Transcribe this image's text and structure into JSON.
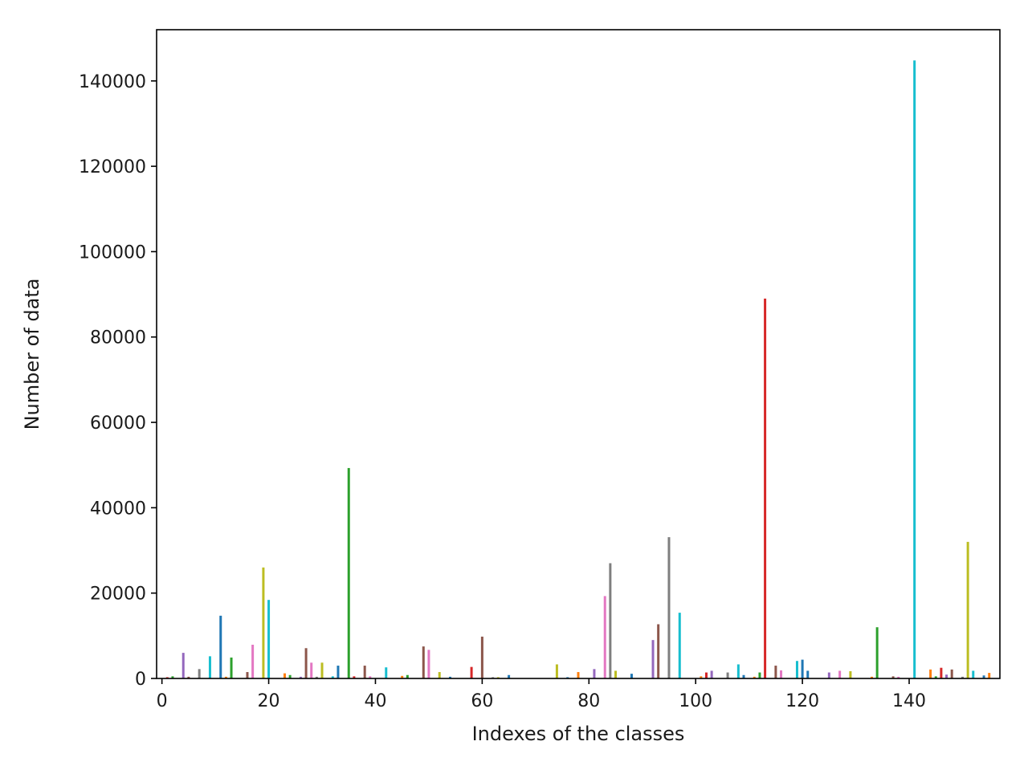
{
  "chart_data": {
    "type": "bar",
    "title": "",
    "xlabel": "Indexes of the classes",
    "ylabel": "Number of data",
    "xlim": [
      -1,
      157
    ],
    "ylim": [
      0,
      152000
    ],
    "xticks": [
      0,
      20,
      40,
      60,
      80,
      100,
      120,
      140
    ],
    "yticks": [
      0,
      20000,
      40000,
      60000,
      80000,
      100000,
      120000,
      140000
    ],
    "grid": false,
    "legend": "none",
    "palette": [
      "#1f77b4",
      "#ff7f0e",
      "#2ca02c",
      "#d62728",
      "#9467bd",
      "#8c564b",
      "#e377c2",
      "#7f7f7f",
      "#bcbd22",
      "#17becf"
    ],
    "bars": [
      {
        "x": 1,
        "y": 300,
        "color": "#d62728"
      },
      {
        "x": 2,
        "y": 500,
        "color": "#2ca02c"
      },
      {
        "x": 4,
        "y": 6000,
        "color": "#9467bd"
      },
      {
        "x": 5,
        "y": 400,
        "color": "#8c564b"
      },
      {
        "x": 7,
        "y": 2200,
        "color": "#7f7f7f"
      },
      {
        "x": 9,
        "y": 5200,
        "color": "#17becf"
      },
      {
        "x": 11,
        "y": 14700,
        "color": "#1f77b4"
      },
      {
        "x": 12,
        "y": 400,
        "color": "#ff7f0e"
      },
      {
        "x": 13,
        "y": 4900,
        "color": "#2ca02c"
      },
      {
        "x": 16,
        "y": 1500,
        "color": "#8c564b"
      },
      {
        "x": 17,
        "y": 7900,
        "color": "#e377c2"
      },
      {
        "x": 19,
        "y": 26000,
        "color": "#bcbd22"
      },
      {
        "x": 20,
        "y": 18400,
        "color": "#17becf"
      },
      {
        "x": 23,
        "y": 1200,
        "color": "#ff7f0e"
      },
      {
        "x": 24,
        "y": 800,
        "color": "#2ca02c"
      },
      {
        "x": 26,
        "y": 400,
        "color": "#9467bd"
      },
      {
        "x": 27,
        "y": 7100,
        "color": "#8c564b"
      },
      {
        "x": 28,
        "y": 3700,
        "color": "#e377c2"
      },
      {
        "x": 29,
        "y": 400,
        "color": "#7f7f7f"
      },
      {
        "x": 30,
        "y": 3700,
        "color": "#bcbd22"
      },
      {
        "x": 32,
        "y": 500,
        "color": "#17becf"
      },
      {
        "x": 33,
        "y": 3000,
        "color": "#1f77b4"
      },
      {
        "x": 35,
        "y": 49300,
        "color": "#2ca02c"
      },
      {
        "x": 36,
        "y": 500,
        "color": "#d62728"
      },
      {
        "x": 38,
        "y": 3000,
        "color": "#8c564b"
      },
      {
        "x": 39,
        "y": 500,
        "color": "#e377c2"
      },
      {
        "x": 42,
        "y": 2600,
        "color": "#17becf"
      },
      {
        "x": 45,
        "y": 600,
        "color": "#ff7f0e"
      },
      {
        "x": 46,
        "y": 800,
        "color": "#2ca02c"
      },
      {
        "x": 49,
        "y": 7500,
        "color": "#8c564b"
      },
      {
        "x": 50,
        "y": 6700,
        "color": "#e377c2"
      },
      {
        "x": 52,
        "y": 1500,
        "color": "#bcbd22"
      },
      {
        "x": 54,
        "y": 400,
        "color": "#1f77b4"
      },
      {
        "x": 58,
        "y": 2700,
        "color": "#d62728"
      },
      {
        "x": 60,
        "y": 9800,
        "color": "#8c564b"
      },
      {
        "x": 62,
        "y": 300,
        "color": "#7f7f7f"
      },
      {
        "x": 63,
        "y": 300,
        "color": "#bcbd22"
      },
      {
        "x": 65,
        "y": 800,
        "color": "#1f77b4"
      },
      {
        "x": 74,
        "y": 3300,
        "color": "#bcbd22"
      },
      {
        "x": 76,
        "y": 300,
        "color": "#1f77b4"
      },
      {
        "x": 78,
        "y": 1500,
        "color": "#ff7f0e"
      },
      {
        "x": 81,
        "y": 2200,
        "color": "#9467bd"
      },
      {
        "x": 83,
        "y": 19300,
        "color": "#e377c2"
      },
      {
        "x": 84,
        "y": 27000,
        "color": "#7f7f7f"
      },
      {
        "x": 85,
        "y": 1800,
        "color": "#bcbd22"
      },
      {
        "x": 88,
        "y": 1100,
        "color": "#1f77b4"
      },
      {
        "x": 92,
        "y": 9000,
        "color": "#9467bd"
      },
      {
        "x": 93,
        "y": 12700,
        "color": "#8c564b"
      },
      {
        "x": 95,
        "y": 33100,
        "color": "#7f7f7f"
      },
      {
        "x": 97,
        "y": 15400,
        "color": "#17becf"
      },
      {
        "x": 101,
        "y": 500,
        "color": "#ff7f0e"
      },
      {
        "x": 102,
        "y": 1400,
        "color": "#d62728"
      },
      {
        "x": 103,
        "y": 1800,
        "color": "#9467bd"
      },
      {
        "x": 106,
        "y": 1400,
        "color": "#7f7f7f"
      },
      {
        "x": 108,
        "y": 3300,
        "color": "#17becf"
      },
      {
        "x": 109,
        "y": 800,
        "color": "#1f77b4"
      },
      {
        "x": 111,
        "y": 400,
        "color": "#ff7f0e"
      },
      {
        "x": 112,
        "y": 1400,
        "color": "#2ca02c"
      },
      {
        "x": 113,
        "y": 89000,
        "color": "#d62728"
      },
      {
        "x": 115,
        "y": 3000,
        "color": "#8c564b"
      },
      {
        "x": 116,
        "y": 1900,
        "color": "#e377c2"
      },
      {
        "x": 119,
        "y": 4100,
        "color": "#17becf"
      },
      {
        "x": 120,
        "y": 4400,
        "color": "#1f77b4"
      },
      {
        "x": 121,
        "y": 1800,
        "color": "#1f77b4"
      },
      {
        "x": 125,
        "y": 1400,
        "color": "#9467bd"
      },
      {
        "x": 127,
        "y": 1800,
        "color": "#e377c2"
      },
      {
        "x": 129,
        "y": 1700,
        "color": "#bcbd22"
      },
      {
        "x": 133,
        "y": 400,
        "color": "#ff7f0e"
      },
      {
        "x": 134,
        "y": 12000,
        "color": "#2ca02c"
      },
      {
        "x": 137,
        "y": 500,
        "color": "#8c564b"
      },
      {
        "x": 138,
        "y": 400,
        "color": "#e377c2"
      },
      {
        "x": 141,
        "y": 144800,
        "color": "#17becf"
      },
      {
        "x": 144,
        "y": 2100,
        "color": "#ff7f0e"
      },
      {
        "x": 145,
        "y": 500,
        "color": "#2ca02c"
      },
      {
        "x": 146,
        "y": 2500,
        "color": "#d62728"
      },
      {
        "x": 147,
        "y": 900,
        "color": "#9467bd"
      },
      {
        "x": 148,
        "y": 2100,
        "color": "#8c564b"
      },
      {
        "x": 150,
        "y": 400,
        "color": "#7f7f7f"
      },
      {
        "x": 151,
        "y": 32000,
        "color": "#bcbd22"
      },
      {
        "x": 152,
        "y": 1800,
        "color": "#17becf"
      },
      {
        "x": 154,
        "y": 700,
        "color": "#1f77b4"
      },
      {
        "x": 155,
        "y": 1300,
        "color": "#ff7f0e"
      }
    ]
  }
}
